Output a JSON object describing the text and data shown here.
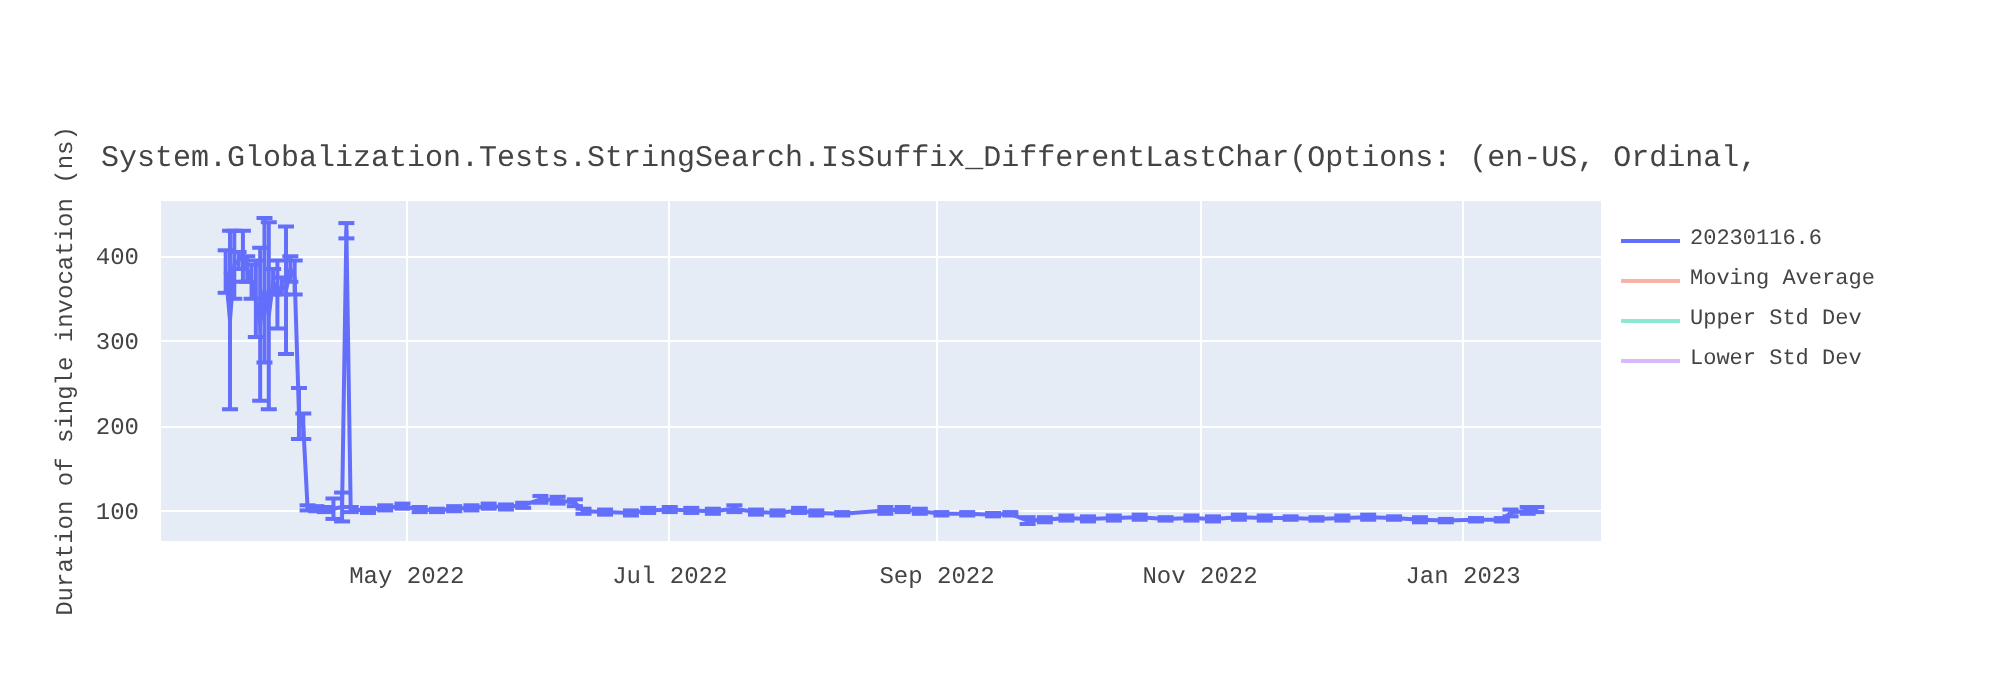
{
  "chart_data": {
    "type": "line",
    "title": "System.Globalization.Tests.StringSearch.IsSuffix_DifferentLastChar(Options: (en-US, Ordinal,",
    "ylabel": "Duration of single invocation (ns)",
    "x": [
      "2022-03-20",
      "2022-03-21",
      "2022-03-22",
      "2022-03-23",
      "2022-03-24",
      "2022-03-25",
      "2022-03-26",
      "2022-03-27",
      "2022-03-28",
      "2022-03-29",
      "2022-03-30",
      "2022-03-31",
      "2022-04-01",
      "2022-04-02",
      "2022-04-03",
      "2022-04-04",
      "2022-04-05",
      "2022-04-06",
      "2022-04-07",
      "2022-04-08",
      "2022-04-10",
      "2022-04-12",
      "2022-04-14",
      "2022-04-16",
      "2022-04-17",
      "2022-04-18",
      "2022-04-22",
      "2022-04-26",
      "2022-04-30",
      "2022-05-04",
      "2022-05-08",
      "2022-05-12",
      "2022-05-16",
      "2022-05-20",
      "2022-05-24",
      "2022-05-28",
      "2022-06-01",
      "2022-06-05",
      "2022-06-09",
      "2022-06-11",
      "2022-06-16",
      "2022-06-22",
      "2022-06-26",
      "2022-07-01",
      "2022-07-06",
      "2022-07-11",
      "2022-07-16",
      "2022-07-21",
      "2022-07-26",
      "2022-07-31",
      "2022-08-04",
      "2022-08-10",
      "2022-08-20",
      "2022-08-24",
      "2022-08-28",
      "2022-09-02",
      "2022-09-08",
      "2022-09-14",
      "2022-09-18",
      "2022-09-22",
      "2022-09-26",
      "2022-10-01",
      "2022-10-06",
      "2022-10-12",
      "2022-10-18",
      "2022-10-24",
      "2022-10-30",
      "2022-11-04",
      "2022-11-10",
      "2022-11-16",
      "2022-11-22",
      "2022-11-28",
      "2022-12-04",
      "2022-12-10",
      "2022-12-16",
      "2022-12-22",
      "2022-12-28",
      "2023-01-04",
      "2023-01-10",
      "2023-01-12",
      "2023-01-16",
      "2023-01-18"
    ],
    "series": [
      {
        "name": "20230116.6",
        "color": "#636efa",
        "values": [
          382,
          325,
          390,
          395,
          400,
          385,
          370,
          350,
          320,
          360,
          330,
          370,
          355,
          365,
          360,
          385,
          375,
          215,
          200,
          104,
          103,
          102,
          103,
          105,
          430,
          102,
          101,
          104,
          106,
          102,
          101,
          103,
          104,
          106,
          105,
          107,
          114,
          113,
          110,
          100,
          99,
          98,
          101,
          102,
          101,
          100,
          103,
          99,
          98,
          101,
          98,
          97,
          101,
          102,
          100,
          97,
          97,
          96,
          97,
          89,
          90,
          92,
          91,
          92,
          93,
          91,
          92,
          91,
          93,
          92,
          92,
          91,
          92,
          93,
          92,
          90,
          89,
          90,
          90,
          98,
          101,
          102
        ],
        "errors": [
          25,
          105,
          40,
          10,
          30,
          15,
          20,
          45,
          90,
          85,
          110,
          15,
          40,
          10,
          75,
          15,
          20,
          30,
          15,
          3,
          3,
          3,
          12,
          17,
          9,
          3,
          3,
          3,
          3,
          3,
          2,
          3,
          3,
          3,
          3,
          3,
          4,
          4,
          4,
          3,
          3,
          3,
          3,
          3,
          3,
          3,
          4,
          3,
          3,
          3,
          3,
          2,
          4,
          3,
          3,
          2,
          2,
          2,
          2,
          4,
          3,
          3,
          3,
          3,
          3,
          2,
          3,
          3,
          3,
          3,
          2,
          2,
          3,
          3,
          2,
          3,
          2,
          2,
          2,
          4,
          4,
          3
        ]
      },
      {
        "name": "Moving Average",
        "color": "#ef553b",
        "values": [
          null,
          null,
          null,
          null,
          null,
          null,
          null,
          null,
          null,
          null,
          null,
          null,
          null,
          null,
          null,
          null,
          null,
          null,
          null,
          null,
          null,
          null,
          null,
          null,
          null,
          null,
          null,
          null,
          null,
          null,
          null,
          null,
          null,
          null,
          null,
          null,
          null,
          null,
          null,
          null,
          null,
          null,
          null,
          null,
          null,
          null,
          null,
          null,
          null,
          null,
          null,
          null,
          null,
          null,
          null,
          null,
          null,
          null,
          null,
          null,
          null,
          null,
          null,
          null,
          null,
          null,
          null,
          null,
          null,
          null,
          null,
          null,
          null,
          null,
          null,
          null,
          null,
          null,
          null,
          null,
          null,
          null
        ]
      },
      {
        "name": "Upper Std Dev",
        "color": "#00cc96",
        "values": [
          null,
          null,
          null,
          null,
          null,
          null,
          null,
          null,
          null,
          null,
          null,
          null,
          null,
          null,
          null,
          null,
          null,
          null,
          null,
          null,
          null,
          null,
          null,
          null,
          null,
          null,
          null,
          null,
          null,
          null,
          null,
          null,
          null,
          null,
          null,
          null,
          null,
          null,
          null,
          null,
          null,
          null,
          null,
          null,
          null,
          null,
          null,
          null,
          null,
          null,
          null,
          null,
          null,
          null,
          null,
          null,
          null,
          null,
          null,
          null,
          null,
          null,
          null,
          null,
          null,
          null,
          null,
          null,
          null,
          null,
          null,
          null,
          null,
          null,
          null,
          null,
          null,
          null,
          null,
          null,
          null,
          null
        ]
      },
      {
        "name": "Lower Std Dev",
        "color": "#ab63fa",
        "values": [
          null,
          null,
          null,
          null,
          null,
          null,
          null,
          null,
          null,
          null,
          null,
          null,
          null,
          null,
          null,
          null,
          null,
          null,
          null,
          null,
          null,
          null,
          null,
          null,
          null,
          null,
          null,
          null,
          null,
          null,
          null,
          null,
          null,
          null,
          null,
          null,
          null,
          null,
          null,
          null,
          null,
          null,
          null,
          null,
          null,
          null,
          null,
          null,
          null,
          null,
          null,
          null,
          null,
          null,
          null,
          null,
          null,
          null,
          null,
          null,
          null,
          null,
          null,
          null,
          null,
          null,
          null,
          null,
          null,
          null,
          null,
          null,
          null,
          null,
          null,
          null,
          null,
          null,
          null,
          null,
          null,
          null
        ]
      }
    ],
    "xlim": [
      "2022-03-05",
      "2023-02-02"
    ],
    "xticks": [
      {
        "value": "2022-05-01",
        "label": "May 2022"
      },
      {
        "value": "2022-07-01",
        "label": "Jul 2022"
      },
      {
        "value": "2022-09-01",
        "label": "Sep 2022"
      },
      {
        "value": "2022-11-01",
        "label": "Nov 2022"
      },
      {
        "value": "2023-01-01",
        "label": "Jan 2023"
      }
    ],
    "ylim": [
      65,
      465
    ],
    "yticks": [
      100,
      200,
      300,
      400
    ],
    "grid": true,
    "legend": "right"
  }
}
